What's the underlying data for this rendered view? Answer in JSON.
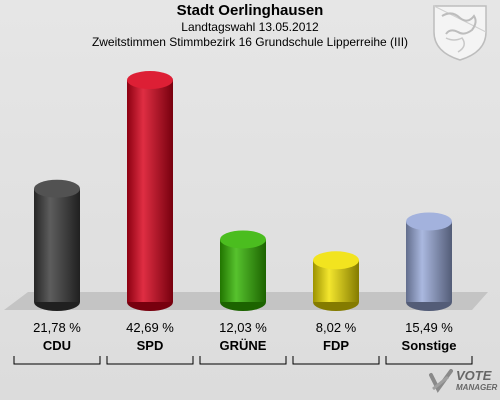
{
  "header": {
    "title": "Stadt Oerlinghausen",
    "subtitle_line1": "Landtagswahl 13.05.2012",
    "subtitle_line2": "Zweitstimmen Stimmbezirk 16 Grundschule Lipperreihe (III)"
  },
  "branding": {
    "logo_main": "VOTE",
    "logo_sub": "MANAGER"
  },
  "chart_data": {
    "type": "bar",
    "title": "Stadt Oerlinghausen",
    "subtitle": "Landtagswahl 13.05.2012 – Zweitstimmen Stimmbezirk 16 Grundschule Lipperreihe (III)",
    "categories": [
      "CDU",
      "SPD",
      "GRÜNE",
      "FDP",
      "Sonstige"
    ],
    "values": [
      21.78,
      42.69,
      12.03,
      8.02,
      15.49
    ],
    "value_labels": [
      "21,78 %",
      "42,69 %",
      "12,03 %",
      "8,02 %",
      "15,49 %"
    ],
    "colors": [
      "#3a3a3a",
      "#d8001a",
      "#32b400",
      "#f0e000",
      "#97a8d8"
    ],
    "ylim": [
      0,
      45
    ],
    "grid": false,
    "legend": "none"
  }
}
